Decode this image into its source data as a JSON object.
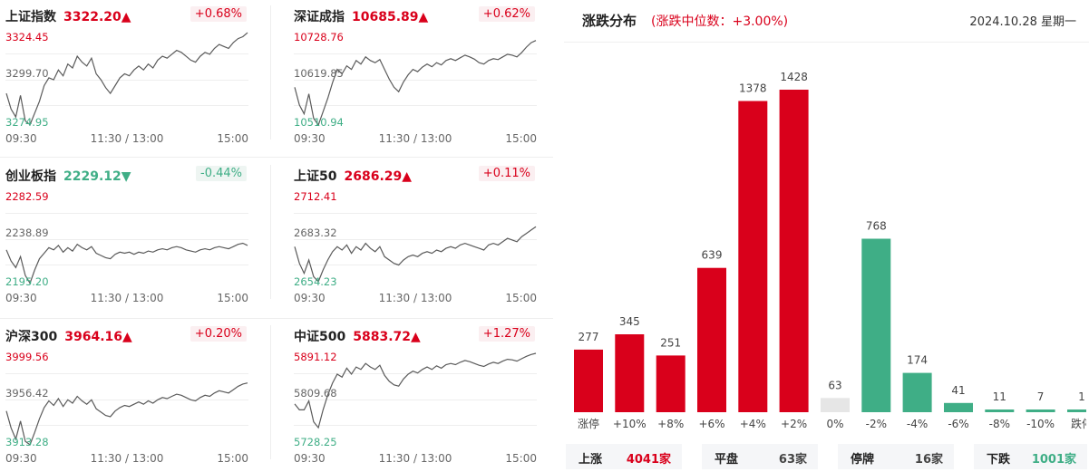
{
  "colors": {
    "up": "#d9001b",
    "down": "#3fae86",
    "flat": "#e6e6e6",
    "line": "#5a5a5a",
    "grid": "#eeeeee"
  },
  "indices": [
    {
      "name": "上证指数",
      "value": "3322.20",
      "arrow": "▲",
      "dir": "up",
      "pct": "+0.68%",
      "hi": "3324.45",
      "mid": "3299.70",
      "lo": "3274.95",
      "t0": "09:30",
      "t1": "11:30 / 13:00",
      "t2": "15:00",
      "series": [
        3292,
        3284,
        3280,
        3291,
        3278,
        3276,
        3282,
        3288,
        3296,
        3300,
        3299,
        3304,
        3301,
        3307,
        3305,
        3311,
        3308,
        3306,
        3310,
        3302,
        3299,
        3295,
        3292,
        3296,
        3300,
        3302,
        3301,
        3304,
        3306,
        3304,
        3307,
        3305,
        3309,
        3311,
        3310,
        3312,
        3314,
        3313,
        3311,
        3309,
        3308,
        3311,
        3313,
        3312,
        3315,
        3317,
        3316,
        3315,
        3318,
        3320,
        3321,
        3323
      ]
    },
    {
      "name": "深证成指",
      "value": "10685.89",
      "arrow": "▲",
      "dir": "up",
      "pct": "+0.62%",
      "hi": "10728.76",
      "mid": "10619.85",
      "lo": "10510.94",
      "t0": "09:30",
      "t1": "11:30 / 13:00",
      "t2": "15:00",
      "series": [
        10600,
        10560,
        10540,
        10585,
        10530,
        10515,
        10545,
        10575,
        10610,
        10640,
        10630,
        10648,
        10640,
        10660,
        10652,
        10668,
        10660,
        10655,
        10662,
        10640,
        10618,
        10600,
        10590,
        10612,
        10628,
        10640,
        10635,
        10645,
        10652,
        10646,
        10655,
        10650,
        10660,
        10664,
        10660,
        10666,
        10672,
        10668,
        10663,
        10655,
        10652,
        10660,
        10664,
        10662,
        10668,
        10674,
        10672,
        10668,
        10678,
        10690,
        10700,
        10705
      ]
    },
    {
      "name": "创业板指",
      "value": "2229.12",
      "arrow": "▼",
      "dir": "down",
      "pct": "-0.44%",
      "hi": "2282.59",
      "mid": "2238.89",
      "lo": "2195.20",
      "t0": "09:30",
      "t1": "11:30 / 13:00",
      "t2": "15:00",
      "series": [
        2228,
        2218,
        2212,
        2222,
        2205,
        2198,
        2210,
        2220,
        2225,
        2230,
        2228,
        2232,
        2226,
        2230,
        2227,
        2233,
        2230,
        2228,
        2231,
        2225,
        2223,
        2221,
        2220,
        2224,
        2226,
        2225,
        2226,
        2224,
        2226,
        2225,
        2227,
        2226,
        2228,
        2229,
        2228,
        2230,
        2231,
        2230,
        2228,
        2227,
        2226,
        2228,
        2229,
        2228,
        2230,
        2231,
        2230,
        2229,
        2231,
        2233,
        2234,
        2232
      ]
    },
    {
      "name": "上证50",
      "value": "2686.29",
      "arrow": "▲",
      "dir": "up",
      "pct": "+0.11%",
      "hi": "2712.41",
      "mid": "2683.32",
      "lo": "2654.23",
      "t0": "09:30",
      "t1": "11:30 / 13:00",
      "t2": "15:00",
      "series": [
        2678,
        2668,
        2662,
        2670,
        2660,
        2657,
        2664,
        2670,
        2675,
        2678,
        2676,
        2679,
        2674,
        2678,
        2676,
        2680,
        2677,
        2675,
        2678,
        2672,
        2670,
        2668,
        2667,
        2670,
        2672,
        2673,
        2672,
        2674,
        2675,
        2674,
        2676,
        2675,
        2677,
        2678,
        2677,
        2679,
        2680,
        2679,
        2678,
        2677,
        2676,
        2679,
        2680,
        2679,
        2681,
        2683,
        2682,
        2681,
        2684,
        2686,
        2688,
        2690
      ]
    },
    {
      "name": "沪深300",
      "value": "3964.16",
      "arrow": "▲",
      "dir": "up",
      "pct": "+0.20%",
      "hi": "3999.56",
      "mid": "3956.42",
      "lo": "3913.28",
      "t0": "09:30",
      "t1": "11:30 / 13:00",
      "t2": "15:00",
      "series": [
        3945,
        3930,
        3920,
        3936,
        3918,
        3915,
        3926,
        3938,
        3948,
        3954,
        3950,
        3956,
        3949,
        3955,
        3952,
        3958,
        3954,
        3951,
        3955,
        3947,
        3944,
        3941,
        3940,
        3945,
        3948,
        3950,
        3949,
        3951,
        3953,
        3951,
        3954,
        3952,
        3955,
        3957,
        3956,
        3958,
        3960,
        3959,
        3957,
        3955,
        3954,
        3957,
        3959,
        3958,
        3961,
        3963,
        3962,
        3961,
        3964,
        3967,
        3969,
        3970
      ]
    },
    {
      "name": "中证500",
      "value": "5883.72",
      "arrow": "▲",
      "dir": "up",
      "pct": "+1.27%",
      "hi": "5891.12",
      "mid": "5809.68",
      "lo": "5728.25",
      "t0": "09:30",
      "t1": "11:30 / 13:00",
      "t2": "15:00",
      "series": [
        5800,
        5790,
        5790,
        5805,
        5770,
        5760,
        5790,
        5815,
        5835,
        5850,
        5845,
        5860,
        5850,
        5862,
        5858,
        5868,
        5862,
        5858,
        5865,
        5848,
        5838,
        5832,
        5830,
        5842,
        5850,
        5855,
        5852,
        5858,
        5862,
        5858,
        5864,
        5860,
        5866,
        5868,
        5866,
        5870,
        5873,
        5871,
        5868,
        5865,
        5863,
        5867,
        5870,
        5868,
        5872,
        5875,
        5874,
        5872,
        5876,
        5880,
        5883,
        5885
      ]
    }
  ],
  "distribution": {
    "title": "涨跌分布",
    "subtitle": "(涨跌中位数：+3.00%)",
    "date": "2024.10.28 星期一",
    "summary": [
      {
        "label": "上涨",
        "value": "4041家",
        "color": "red"
      },
      {
        "label": "平盘",
        "value": "63家",
        "color": "gray"
      },
      {
        "label": "停牌",
        "value": "16家",
        "color": "gray"
      },
      {
        "label": "下跌",
        "value": "1001家",
        "color": "green"
      }
    ]
  },
  "chart_data": {
    "type": "bar",
    "title": "涨跌分布",
    "categories": [
      "涨停",
      "+10%",
      "+8%",
      "+6%",
      "+4%",
      "+2%",
      "0%",
      "-2%",
      "-4%",
      "-6%",
      "-8%",
      "-10%",
      "跌停"
    ],
    "values": [
      277,
      345,
      251,
      639,
      1378,
      1428,
      63,
      768,
      174,
      41,
      11,
      7,
      1
    ],
    "bar_colors": [
      "up",
      "up",
      "up",
      "up",
      "up",
      "up",
      "flat",
      "down",
      "down",
      "down",
      "down",
      "down",
      "down"
    ],
    "ylim": [
      0,
      1428
    ],
    "grid": false,
    "legend": "none"
  }
}
